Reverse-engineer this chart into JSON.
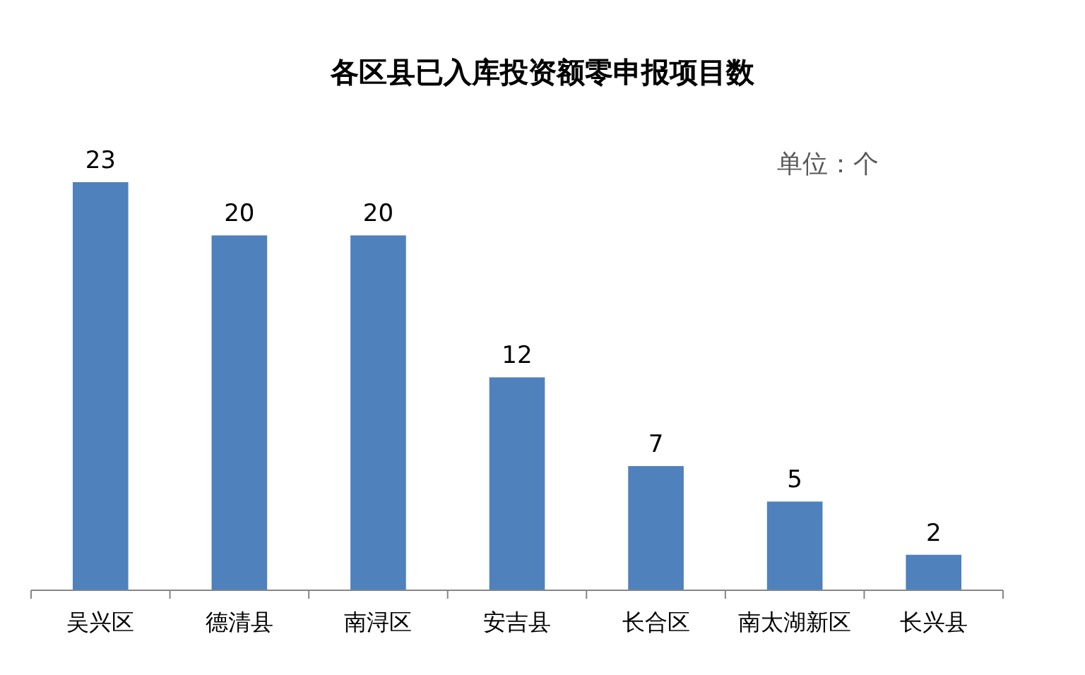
{
  "chart_data": {
    "type": "bar",
    "title": "各区县已入库投资额零申报项目数",
    "annotations": [
      "单位：个"
    ],
    "categories": [
      "吴兴区",
      "德清县",
      "南浔区",
      "安吉县",
      "长合区",
      "南太湖新区",
      "长兴县"
    ],
    "values": [
      23,
      20,
      20,
      12,
      7,
      5,
      2
    ],
    "color": "#4f81bd",
    "data_labels": true
  }
}
